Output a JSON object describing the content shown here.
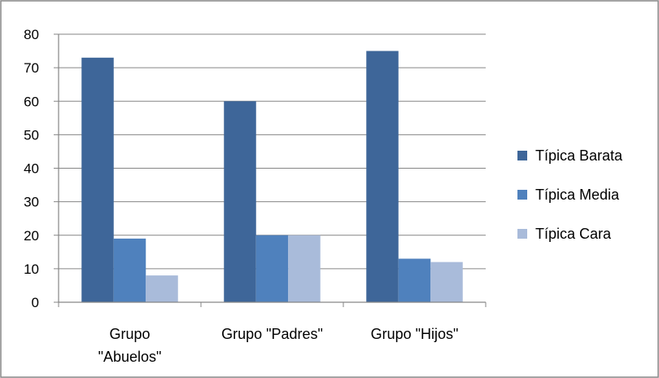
{
  "chart_data": {
    "type": "bar",
    "categories": [
      [
        "Grupo",
        "\"Abuelos\""
      ],
      [
        "Grupo \"Padres\""
      ],
      [
        "Grupo \"Hijos\""
      ]
    ],
    "series": [
      {
        "name": "Típica Barata",
        "values": [
          73,
          60,
          75
        ],
        "color": "#3E6699"
      },
      {
        "name": "Típica Media",
        "values": [
          19,
          20,
          13
        ],
        "color": "#4F81BD"
      },
      {
        "name": "Típica Cara",
        "values": [
          8,
          20,
          12
        ],
        "color": "#A9BBDA"
      }
    ],
    "ylim": [
      0,
      80
    ],
    "yticks": [
      0,
      10,
      20,
      30,
      40,
      50,
      60,
      70,
      80
    ],
    "grid": true,
    "legend": "right",
    "gridColor": "#868686",
    "axisColor": "#868686"
  }
}
